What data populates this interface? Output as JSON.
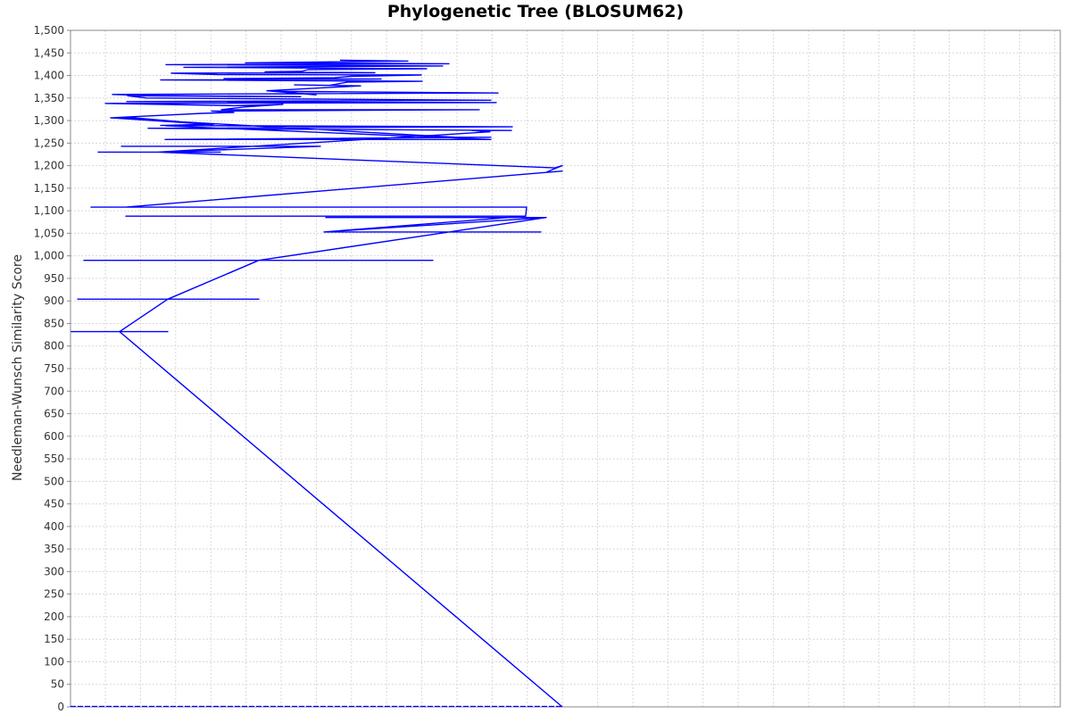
{
  "chart_data": {
    "type": "line",
    "title": "Phylogenetic Tree (BLOSUM62)",
    "xlabel": "",
    "ylabel": "Needleman-Wunsch Similarity Score",
    "ylim": [
      0,
      1500
    ],
    "yticks": [
      0,
      50,
      100,
      150,
      200,
      250,
      300,
      350,
      400,
      450,
      500,
      550,
      600,
      650,
      700,
      750,
      800,
      850,
      900,
      950,
      1000,
      1050,
      1100,
      1150,
      1200,
      1250,
      1300,
      1350,
      1400,
      1450,
      1500
    ],
    "ytick_labels": [
      "0",
      "50",
      "100",
      "150",
      "200",
      "250",
      "300",
      "350",
      "400",
      "450",
      "500",
      "550",
      "600",
      "650",
      "700",
      "750",
      "800",
      "850",
      "900",
      "950",
      "1,000",
      "1,050",
      "1,100",
      "1,150",
      "1,200",
      "1,250",
      "1,300",
      "1,350",
      "1,400",
      "1,450",
      "1,500"
    ],
    "grid": true,
    "legend": "none",
    "series_color": "#0000ff",
    "series": [
      {
        "points": [
          [
            630,
            0
          ],
          [
            134,
            832
          ],
          [
            80,
            832
          ],
          [
            134,
            832
          ],
          [
            188,
            832
          ],
          [
            134,
            832
          ],
          [
            188,
            904
          ],
          [
            87,
            904
          ],
          [
            290,
            904
          ],
          [
            188,
            904
          ],
          [
            290,
            990
          ],
          [
            94,
            990
          ],
          [
            485,
            990
          ],
          [
            290,
            990
          ],
          [
            612,
            1085
          ],
          [
            365,
            1085
          ],
          [
            612,
            1085
          ],
          [
            363,
            1053
          ],
          [
            606,
            1053
          ],
          [
            363,
            1053
          ],
          [
            589,
            1088
          ],
          [
            141,
            1088
          ],
          [
            589,
            1088
          ],
          [
            590,
            1108
          ],
          [
            102,
            1108
          ],
          [
            141,
            1108
          ],
          [
            590,
            1108
          ],
          [
            141,
            1108
          ],
          [
            630,
            1188
          ],
          [
            612,
            1185
          ],
          [
            620,
            1192
          ],
          [
            630,
            1200
          ],
          [
            622,
            1195
          ],
          [
            177,
            1230
          ],
          [
            110,
            1230
          ],
          [
            247,
            1230
          ],
          [
            177,
            1230
          ],
          [
            359,
            1243
          ],
          [
            136,
            1243
          ],
          [
            359,
            1243
          ],
          [
            177,
            1230
          ],
          [
            549,
            1275
          ],
          [
            529,
            1278
          ],
          [
            573,
            1278
          ],
          [
            166,
            1283
          ],
          [
            574,
            1286
          ],
          [
            180,
            1289
          ],
          [
            240,
            1292
          ],
          [
            205,
            1290
          ],
          [
            186,
            1288
          ],
          [
            550,
            1258
          ],
          [
            185,
            1258
          ],
          [
            550,
            1263
          ],
          [
            510,
            1263
          ],
          [
            124,
            1306
          ],
          [
            150,
            1306
          ],
          [
            238,
            1291
          ],
          [
            124,
            1306
          ],
          [
            227,
            1316
          ],
          [
            262,
            1318
          ],
          [
            237,
            1321
          ],
          [
            537,
            1324
          ],
          [
            248,
            1324
          ],
          [
            273,
            1330
          ],
          [
            317,
            1336
          ],
          [
            263,
            1333
          ],
          [
            118,
            1338
          ],
          [
            556,
            1340
          ],
          [
            142,
            1342
          ],
          [
            550,
            1345
          ],
          [
            164,
            1350
          ],
          [
            143,
            1355
          ],
          [
            337,
            1353
          ],
          [
            150,
            1356
          ],
          [
            126,
            1358
          ],
          [
            540,
            1361
          ],
          [
            558,
            1361
          ],
          [
            307,
            1365
          ],
          [
            354,
            1357
          ],
          [
            299,
            1366
          ],
          [
            404,
            1377
          ],
          [
            330,
            1379
          ],
          [
            369,
            1378
          ],
          [
            389,
            1385
          ],
          [
            473,
            1387
          ],
          [
            180,
            1390
          ],
          [
            427,
            1392
          ],
          [
            251,
            1393
          ],
          [
            375,
            1395
          ],
          [
            393,
            1398
          ],
          [
            472,
            1401
          ],
          [
            244,
            1402
          ],
          [
            192,
            1405
          ],
          [
            420,
            1406
          ],
          [
            297,
            1408
          ],
          [
            338,
            1409
          ],
          [
            345,
            1413
          ],
          [
            478,
            1415
          ],
          [
            206,
            1418
          ],
          [
            496,
            1421
          ],
          [
            186,
            1424
          ],
          [
            503,
            1426
          ],
          [
            275,
            1428
          ],
          [
            457,
            1432
          ],
          [
            381,
            1434
          ]
        ]
      }
    ]
  }
}
